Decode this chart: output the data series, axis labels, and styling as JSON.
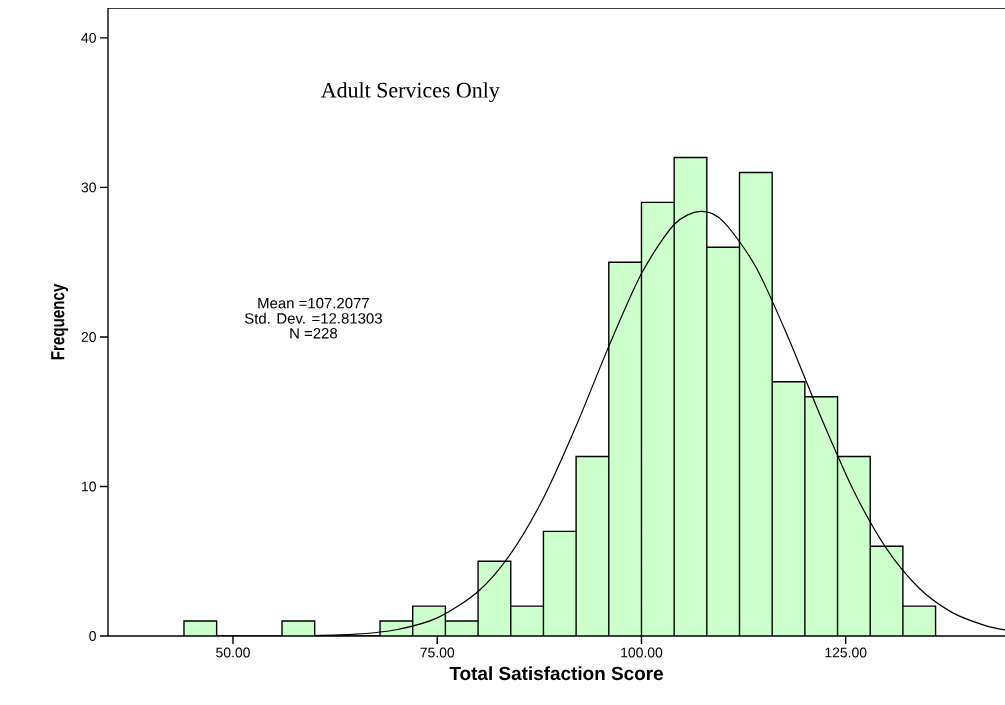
{
  "chart_data": {
    "type": "histogram",
    "xlabel": "Total Satisfaction Score",
    "ylabel": "Frequency",
    "annotations": [
      "Adult Services Only",
      "Mean =107.2077",
      "Std. Dev. =12.81303",
      "N =228"
    ],
    "bins": [
      44,
      48,
      52,
      56,
      60,
      64,
      68,
      72,
      76,
      80,
      84,
      88,
      92,
      96,
      100,
      104,
      108,
      112,
      116,
      120,
      124,
      128,
      132,
      136
    ],
    "values": [
      1,
      0,
      0,
      1,
      0,
      0,
      1,
      2,
      1,
      5,
      2,
      7,
      12,
      25,
      29,
      32,
      26,
      31,
      17,
      16,
      12,
      6,
      2
    ],
    "color": "#ccffcc",
    "series": [
      {
        "type": "line",
        "color": "#000000",
        "x": [
          60,
          65,
          70,
          75,
          80,
          84,
          88,
          92,
          96,
          100,
          104,
          107.2,
          110,
          114,
          118,
          122,
          126,
          130,
          134,
          138,
          142,
          144.5
        ],
        "values": [
          0.03,
          0.12,
          0.42,
          1.21,
          2.98,
          5.51,
          9.23,
          14.04,
          19.37,
          24.24,
          27.52,
          28.4,
          27.73,
          24.68,
          19.92,
          14.59,
          9.68,
          5.84,
          3.19,
          1.58,
          0.71,
          0.41
        ]
      }
    ],
    "xlim": [
      34.7,
      144.5
    ],
    "ylim": [
      0,
      42
    ],
    "xticks": [
      {
        "value": 50,
        "label": "50.00"
      },
      {
        "value": 75,
        "label": "75.00"
      },
      {
        "value": 100,
        "label": "100.00"
      },
      {
        "value": 125,
        "label": "125.00"
      }
    ],
    "yticks": [
      0,
      10,
      20,
      30,
      40
    ]
  }
}
